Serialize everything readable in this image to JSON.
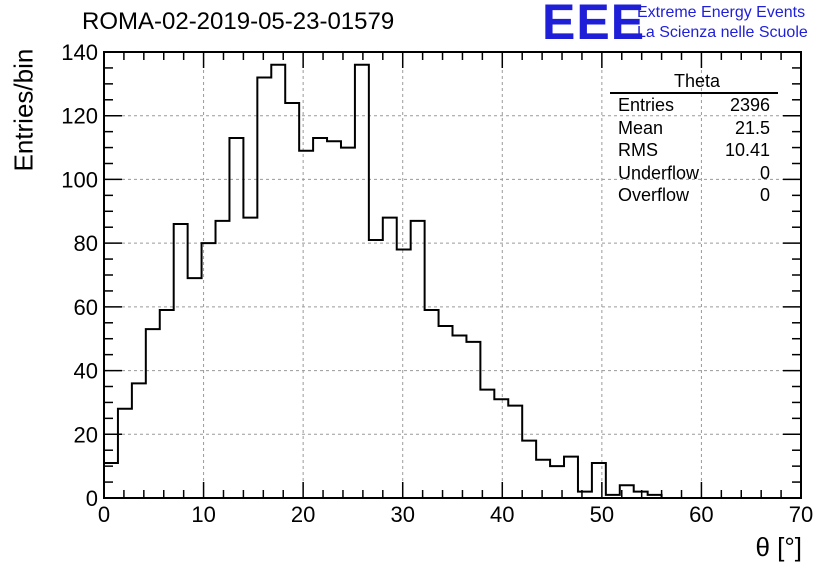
{
  "chart_data": {
    "type": "bar",
    "style": "step-histogram",
    "title": "ROMA-02-2019-05-23-01579",
    "xlabel": "θ [°]",
    "ylabel": "Entries/bin",
    "xlim": [
      0,
      70
    ],
    "ylim": [
      0,
      140
    ],
    "bin_width": 1.4,
    "x_ticks": [
      0,
      10,
      20,
      30,
      40,
      50,
      60,
      70
    ],
    "y_ticks": [
      0,
      20,
      40,
      60,
      80,
      100,
      120,
      140
    ],
    "grid": true,
    "values": [
      11,
      28,
      36,
      53,
      59,
      86,
      69,
      80,
      87,
      113,
      88,
      132,
      136,
      124,
      109,
      113,
      112,
      110,
      136,
      81,
      88,
      78,
      87,
      59,
      54,
      51,
      49,
      34,
      31,
      29,
      18,
      12,
      10,
      13,
      2,
      11,
      1,
      4,
      2,
      1,
      0,
      0,
      0,
      0,
      0,
      0,
      0,
      0,
      0,
      0
    ],
    "line_color": "#000000"
  },
  "stats_box": {
    "title": "Theta",
    "rows": [
      {
        "label": "Entries",
        "value": "2396"
      },
      {
        "label": "Mean",
        "value": "21.5"
      },
      {
        "label": "RMS",
        "value": "10.41"
      },
      {
        "label": "Underflow",
        "value": "0"
      },
      {
        "label": "Overflow",
        "value": "0"
      }
    ]
  },
  "logo": {
    "mark": "EEE",
    "line1": "Extreme Energy Events",
    "line2": "La Scienza nelle Scuole",
    "color": "#1f1fd8"
  }
}
